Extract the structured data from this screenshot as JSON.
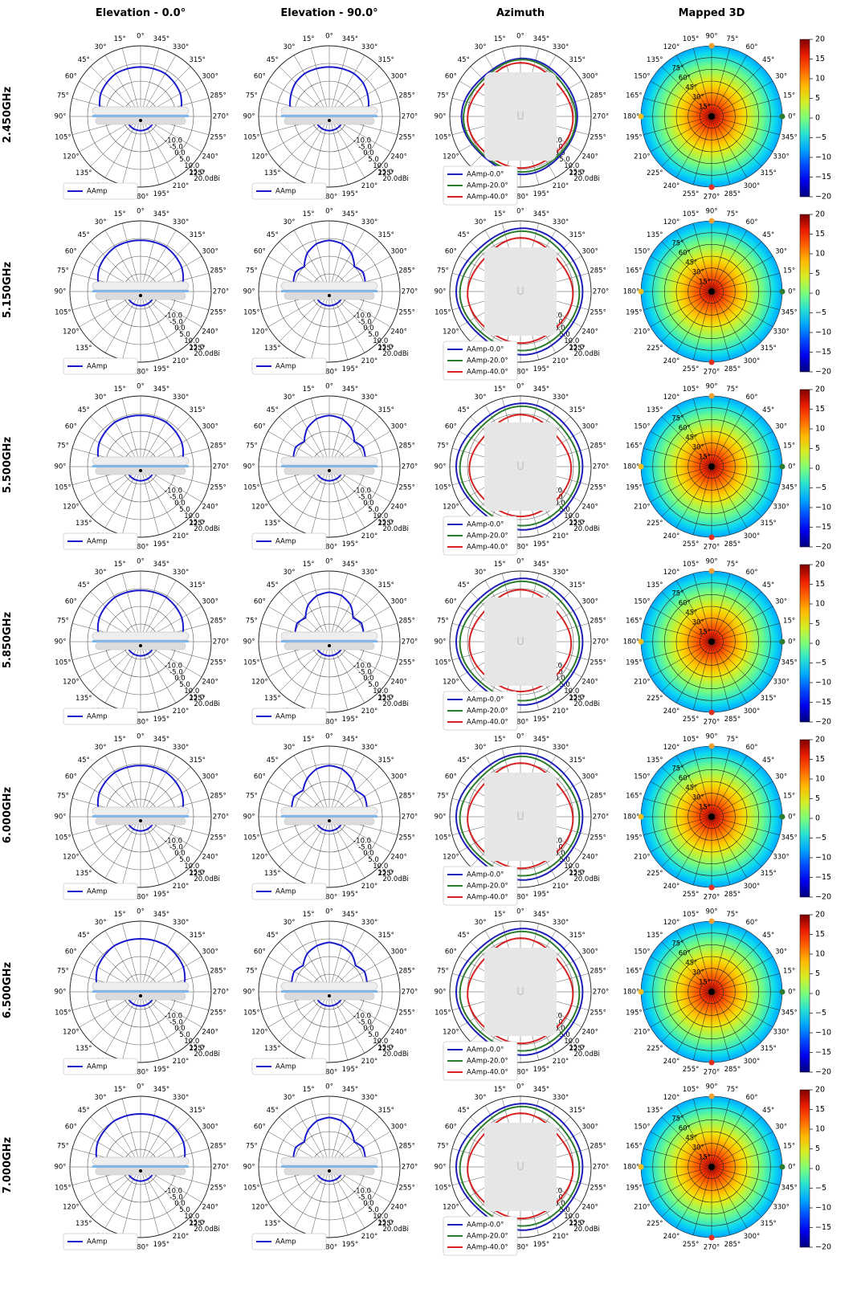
{
  "column_titles": [
    "Elevation - 0.0°",
    "Elevation - 90.0°",
    "Azimuth",
    "Mapped 3D"
  ],
  "row_labels": [
    "2.450GHz",
    "5.150GHz",
    "5.500GHz",
    "5.850GHz",
    "6.000GHz",
    "6.500GHz",
    "7.000GHz"
  ],
  "legend": {
    "elevation": [
      "AAmp"
    ],
    "azimuth": [
      "AAmp-0.0°",
      "AAmp-20.0°",
      "AAmp-40.0°"
    ]
  },
  "colors": {
    "elevation_trace": "#1a1acc",
    "az_0": "#1f1fb8",
    "az_20": "#2e7d2e",
    "az_40": "#d62222",
    "grid": "#555555",
    "marker_top": "#f0a030",
    "marker_bottom": "#e03020",
    "marker_right": "#2e7d2e",
    "marker_left": "#f0c020"
  },
  "chart_data": [
    {
      "type": "polar-line",
      "panel": "elevation-0",
      "title": "Elevation - 0.0°",
      "angle_ticks_deg": [
        "0°",
        "15°",
        "30°",
        "45°",
        "60°",
        "75°",
        "90°",
        "105°",
        "120°",
        "135°",
        "150°",
        "165°",
        "180°",
        "195°",
        "210°",
        "225°",
        "240°",
        "255°",
        "270°",
        "285°",
        "300°",
        "315°",
        "330°",
        "345°"
      ],
      "radial_ticks": [
        "-10.0",
        "-5.0",
        "0.0",
        "5.0",
        "10.0",
        "15.0",
        "20.0dBi"
      ],
      "r_range_dbi": [
        -20,
        20
      ],
      "series": [
        {
          "name": "AAmp",
          "frequency": "2.450GHz",
          "gain_dbi_0_to_180_step15": [
            8,
            8,
            8,
            7,
            6,
            4,
            1,
            -8,
            -12,
            -12,
            -12,
            -12,
            -12
          ]
        },
        {
          "name": "AAmp",
          "frequency": "5.150GHz",
          "gain_dbi_0_to_180_step15": [
            9,
            9,
            9,
            8,
            7,
            5,
            2,
            -8,
            -12,
            -12,
            -12,
            -12,
            -12
          ]
        },
        {
          "name": "AAmp",
          "frequency": "5.500GHz",
          "gain_dbi_0_to_180_step15": [
            9,
            9,
            9,
            8,
            7,
            5,
            2,
            -8,
            -12,
            -12,
            -12,
            -12,
            -12
          ]
        },
        {
          "name": "AAmp",
          "frequency": "5.850GHz",
          "gain_dbi_0_to_180_step15": [
            9,
            9,
            9,
            8,
            7,
            5,
            2,
            -8,
            -12,
            -12,
            -12,
            -12,
            -12
          ]
        },
        {
          "name": "AAmp",
          "frequency": "6.000GHz",
          "gain_dbi_0_to_180_step15": [
            9,
            9,
            9,
            8,
            7,
            5,
            2,
            -8,
            -12,
            -12,
            -12,
            -12,
            -12
          ]
        },
        {
          "name": "AAmp",
          "frequency": "6.500GHz",
          "gain_dbi_0_to_180_step15": [
            10,
            10,
            10,
            9,
            8,
            6,
            3,
            -8,
            -12,
            -12,
            -12,
            -12,
            -12
          ]
        },
        {
          "name": "AAmp",
          "frequency": "7.000GHz",
          "gain_dbi_0_to_180_step15": [
            10,
            10,
            10,
            9,
            8,
            6,
            3,
            -8,
            -12,
            -12,
            -12,
            -12,
            -12
          ]
        }
      ]
    },
    {
      "type": "polar-line",
      "panel": "elevation-90",
      "title": "Elevation - 90.0°",
      "angle_ticks_deg": [
        "0°",
        "15°",
        "30°",
        "45°",
        "60°",
        "75°",
        "90°",
        "105°",
        "120°",
        "135°",
        "150°",
        "165°",
        "180°",
        "195°",
        "210°",
        "225°",
        "240°",
        "255°",
        "270°",
        "285°",
        "300°",
        "315°",
        "330°",
        "345°"
      ],
      "radial_ticks": [
        "-10.0",
        "-5.0",
        "0.0",
        "5.0",
        "10.0",
        "15.0",
        "20.0dBi"
      ],
      "r_range_dbi": [
        -20,
        20
      ],
      "series": [
        {
          "name": "AAmp",
          "frequency": "2.450GHz",
          "gain_dbi_0_to_180_step15": [
            8,
            8,
            8,
            7,
            5,
            3,
            0,
            -8,
            -12,
            -12,
            -12,
            -12,
            -12
          ]
        },
        {
          "name": "AAmp",
          "frequency": "5.150GHz",
          "gain_dbi_0_to_180_step15": [
            9,
            8,
            5,
            0,
            2,
            1,
            -1,
            -8,
            -12,
            -12,
            -12,
            -12,
            -12
          ]
        },
        {
          "name": "AAmp",
          "frequency": "5.500GHz",
          "gain_dbi_0_to_180_step15": [
            9,
            8,
            5,
            0,
            2,
            1,
            -1,
            -8,
            -12,
            -12,
            -12,
            -12,
            -12
          ]
        },
        {
          "name": "AAmp",
          "frequency": "5.850GHz",
          "gain_dbi_0_to_180_step15": [
            8,
            7,
            4,
            -1,
            1,
            0,
            -2,
            -8,
            -12,
            -12,
            -12,
            -12,
            -12
          ]
        },
        {
          "name": "AAmp",
          "frequency": "6.000GHz",
          "gain_dbi_0_to_180_step15": [
            9,
            8,
            5,
            1,
            3,
            2,
            0,
            -8,
            -12,
            -12,
            -12,
            -12,
            -12
          ]
        },
        {
          "name": "AAmp",
          "frequency": "6.500GHz",
          "gain_dbi_0_to_180_step15": [
            8,
            7,
            5,
            1,
            3,
            2,
            0,
            -8,
            -12,
            -12,
            -12,
            -12,
            -12
          ]
        },
        {
          "name": "AAmp",
          "frequency": "7.000GHz",
          "gain_dbi_0_to_180_step15": [
            8,
            7,
            4,
            0,
            2,
            1,
            -1,
            -8,
            -12,
            -12,
            -12,
            -12,
            -12
          ]
        }
      ]
    },
    {
      "type": "polar-line",
      "panel": "azimuth",
      "title": "Azimuth",
      "angle_ticks_deg": [
        "0°",
        "15°",
        "30°",
        "45°",
        "60°",
        "75°",
        "90°",
        "105°",
        "120°",
        "135°",
        "150°",
        "165°",
        "180°",
        "195°",
        "210°",
        "225°",
        "240°",
        "255°",
        "270°",
        "285°",
        "300°",
        "315°",
        "330°",
        "345°"
      ],
      "radial_ticks": [
        "-10.0",
        "-5.0",
        "0.0",
        "5.0",
        "10.0",
        "15.0",
        "20.0dBi"
      ],
      "r_range_dbi": [
        -20,
        20
      ],
      "series": [
        {
          "name": "AAmp-0.0°",
          "frequency": "2.450GHz",
          "gain_dbi": 12
        },
        {
          "name": "AAmp-20.0°",
          "frequency": "2.450GHz",
          "gain_dbi": 11
        },
        {
          "name": "AAmp-40.0°",
          "frequency": "2.450GHz",
          "gain_dbi": 9
        },
        {
          "name": "AAmp-0.0°",
          "frequency": "5.150GHz",
          "gain_dbi": 15
        },
        {
          "name": "AAmp-20.0°",
          "frequency": "5.150GHz",
          "gain_dbi": 13
        },
        {
          "name": "AAmp-40.0°",
          "frequency": "5.150GHz",
          "gain_dbi": 9
        },
        {
          "name": "AAmp-0.0°",
          "frequency": "5.500GHz",
          "gain_dbi": 15
        },
        {
          "name": "AAmp-20.0°",
          "frequency": "5.500GHz",
          "gain_dbi": 13
        },
        {
          "name": "AAmp-40.0°",
          "frequency": "5.500GHz",
          "gain_dbi": 8
        },
        {
          "name": "AAmp-0.0°",
          "frequency": "5.850GHz",
          "gain_dbi": 15
        },
        {
          "name": "AAmp-20.0°",
          "frequency": "5.850GHz",
          "gain_dbi": 13
        },
        {
          "name": "AAmp-40.0°",
          "frequency": "5.850GHz",
          "gain_dbi": 8
        },
        {
          "name": "AAmp-0.0°",
          "frequency": "6.000GHz",
          "gain_dbi": 15
        },
        {
          "name": "AAmp-20.0°",
          "frequency": "6.000GHz",
          "gain_dbi": 13
        },
        {
          "name": "AAmp-40.0°",
          "frequency": "6.000GHz",
          "gain_dbi": 9
        },
        {
          "name": "AAmp-0.0°",
          "frequency": "6.500GHz",
          "gain_dbi": 15
        },
        {
          "name": "AAmp-20.0°",
          "frequency": "6.500GHz",
          "gain_dbi": 13
        },
        {
          "name": "AAmp-40.0°",
          "frequency": "6.500GHz",
          "gain_dbi": 9
        },
        {
          "name": "AAmp-0.0°",
          "frequency": "7.000GHz",
          "gain_dbi": 15
        },
        {
          "name": "AAmp-20.0°",
          "frequency": "7.000GHz",
          "gain_dbi": 13
        },
        {
          "name": "AAmp-40.0°",
          "frequency": "7.000GHz",
          "gain_dbi": 9
        }
      ]
    },
    {
      "type": "heatmap",
      "panel": "mapped-3d",
      "title": "Mapped 3D",
      "angle_ticks_deg": [
        "0°",
        "15°",
        "30°",
        "45°",
        "60°",
        "75°",
        "90°",
        "105°",
        "120°",
        "135°",
        "150°",
        "165°",
        "180°",
        "195°",
        "210°",
        "225°",
        "240°",
        "255°",
        "270°",
        "285°",
        "300°",
        "315°",
        "330°",
        "345°"
      ],
      "radial_ticks": [
        "15°",
        "30°",
        "45°",
        "60°",
        "75°"
      ],
      "colorbar_ticks": [
        "20",
        "15",
        "10",
        "5",
        "0",
        "−5",
        "−10",
        "−15",
        "−20"
      ],
      "colorbar_range": [
        -20,
        20
      ],
      "peak_gain_dbi": 18,
      "edge_gain_dbi": -8
    }
  ]
}
